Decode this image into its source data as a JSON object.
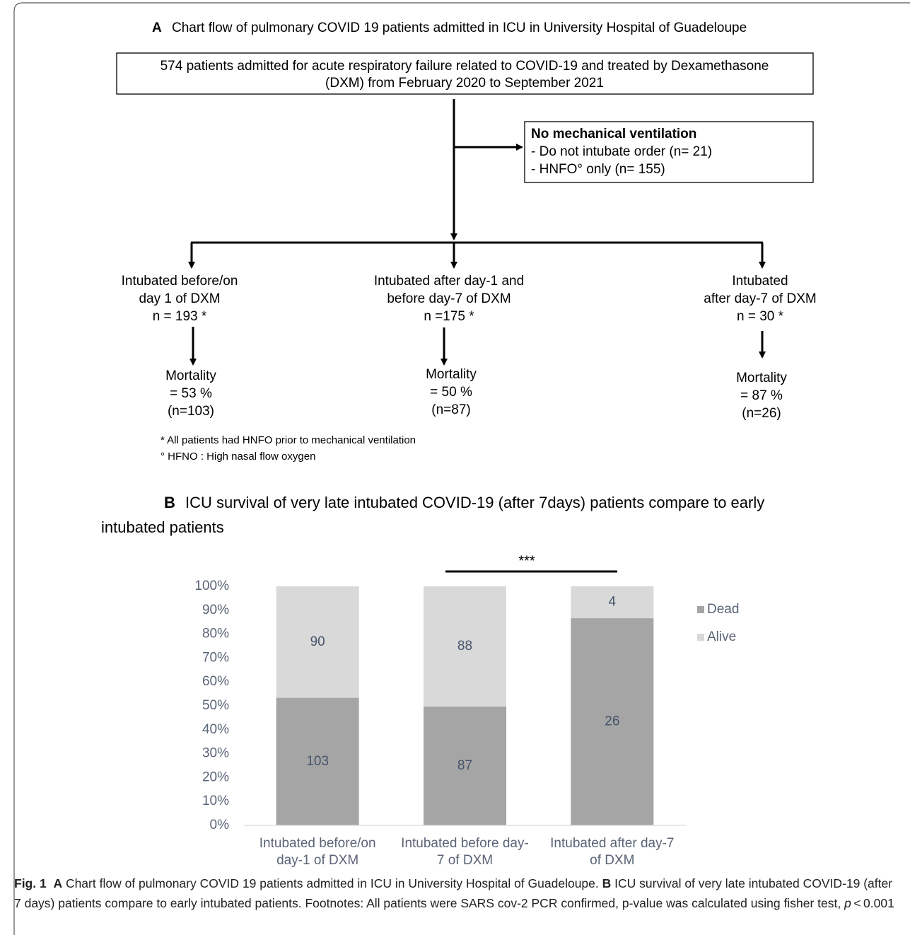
{
  "flowchart": {
    "title_letter": "A",
    "title": "Chart flow of pulmonary COVID 19 patients admitted in ICU in University Hospital of Guadeloupe",
    "start": [
      "574 patients admitted for acute respiratory failure related to COVID-19 and treated by Dexamethasone",
      "(DXM)  from February 2020 to September 2021"
    ],
    "excluded": {
      "heading": "No mechanical ventilation",
      "items": [
        "- Do not intubate order (n= 21)",
        "- HNFO° only (n= 155)"
      ]
    },
    "groups": [
      {
        "label": [
          "Intubated before/on",
          "day 1 of DXM",
          "n = 193 *"
        ],
        "outcome": [
          "Mortality",
          " = 53 %",
          "(n=103)"
        ]
      },
      {
        "label": [
          "Intubated  after day-1 and",
          "before day-7 of DXM",
          "n =175 *"
        ],
        "outcome": [
          "Mortality",
          " = 50  %",
          "(n=87)"
        ]
      },
      {
        "label": [
          "Intubated",
          "after day-7 of DXM",
          "n = 30 *"
        ],
        "outcome": [
          "Mortality",
          " =  87 %",
          "(n=26)"
        ]
      }
    ],
    "footnotes": [
      "* All patients had HNFO prior to mechanical ventilation",
      "° HFNO : High nasal flow oxygen"
    ]
  },
  "section_b": {
    "letter": "B",
    "title": [
      "ICU survival of very late intubated COVID-19 (after 7days) patients compare to early",
      "intubated patients"
    ]
  },
  "chart_data": {
    "type": "bar",
    "stacked": "percent",
    "categories": [
      [
        "Intubated before/on",
        "day-1 of DXM"
      ],
      [
        "Intubated before day-",
        "7 of DXM"
      ],
      [
        "Intubated after day-7",
        "of DXM"
      ]
    ],
    "series": [
      {
        "name": "Dead",
        "color": "#a5a5a5",
        "values": [
          103,
          87,
          26
        ]
      },
      {
        "name": "Alive",
        "color": "#d9d9d9",
        "values": [
          90,
          88,
          4
        ]
      }
    ],
    "ylim": [
      0,
      100
    ],
    "yticks": [
      {
        "value": 0,
        "label": "0%"
      },
      {
        "value": 10,
        "label": "10%"
      },
      {
        "value": 20,
        "label": "20%"
      },
      {
        "value": 30,
        "label": "30%"
      },
      {
        "value": 40,
        "label": "40%"
      },
      {
        "value": 50,
        "label": "50%"
      },
      {
        "value": 60,
        "label": "60%"
      },
      {
        "value": 70,
        "label": "70%"
      },
      {
        "value": 80,
        "label": "80%"
      },
      {
        "value": 90,
        "label": "90%"
      },
      {
        "value": 100,
        "label": "100%"
      }
    ],
    "annotation": "***",
    "legend": "right"
  },
  "caption": {
    "label": "Fig. 1",
    "a": "A",
    "text_a": " Chart flow of pulmonary COVID 19 patients admitted in ICU in University Hospital of Guadeloupe. ",
    "b": "B",
    "text_b": " ICU survival of very late intubated COVID-19 (after 7 days) patients compare to early intubated patients. Footnotes: All patients were SARS cov-2 PCR confirmed, p-value was calculated using fisher test, ",
    "p": "p",
    "text_p": " < 0.001"
  }
}
